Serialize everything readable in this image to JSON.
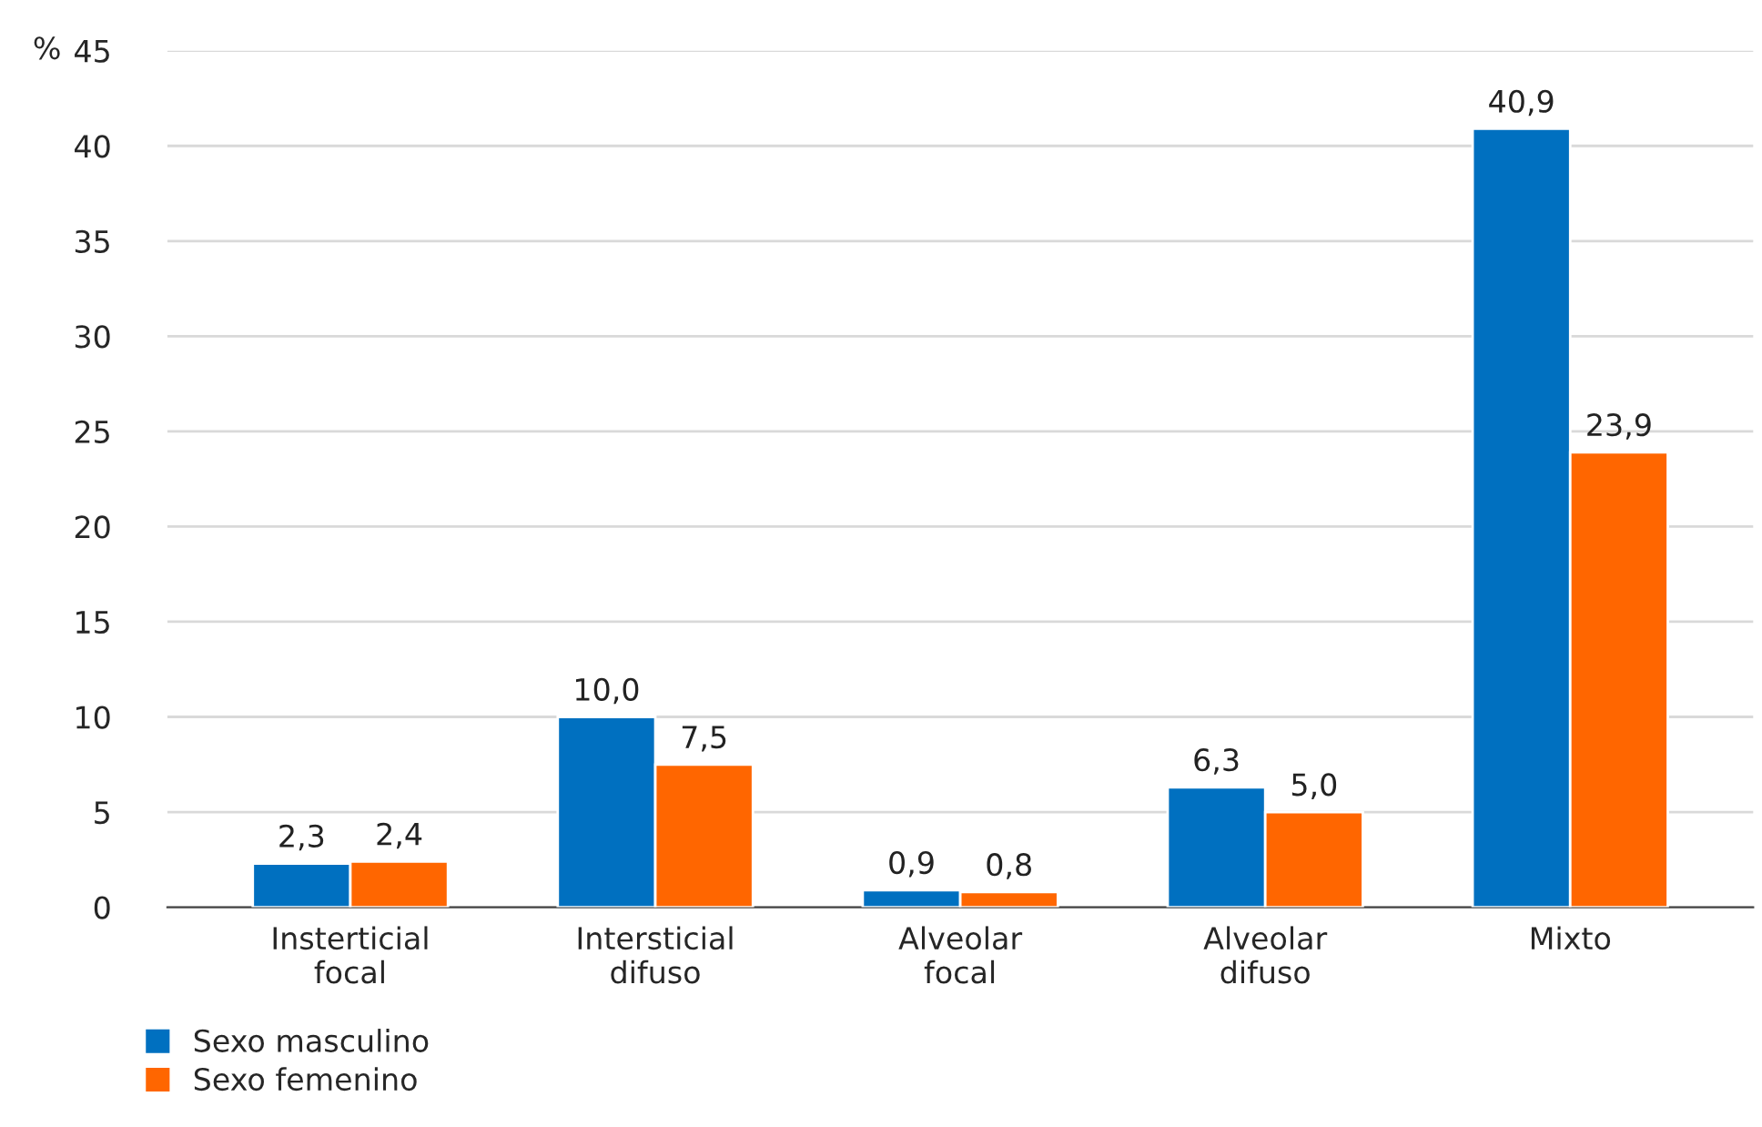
{
  "chart_data": {
    "type": "bar",
    "ylabel": "%",
    "categories": [
      "Insterticial\nfocal",
      "Intersticial\ndifuso",
      "Alveolar\nfocal",
      "Alveolar\ndifuso",
      "Mixto"
    ],
    "series": [
      {
        "name": "Sexo masculino",
        "color": "#0070c0",
        "values": [
          2.3,
          10.0,
          0.9,
          6.3,
          40.9
        ],
        "value_labels": [
          "2,3",
          "10,0",
          "0,9",
          "6,3",
          "40,9"
        ]
      },
      {
        "name": "Sexo femenino",
        "color": "#ff6600",
        "values": [
          2.4,
          7.5,
          0.8,
          5.0,
          23.9
        ],
        "value_labels": [
          "2,4",
          "7,5",
          "0,8",
          "5,0",
          "23,9"
        ]
      }
    ],
    "ylim": [
      0,
      45
    ],
    "yticks": [
      0,
      5,
      10,
      15,
      20,
      25,
      30,
      35,
      40,
      45
    ],
    "grid": "y",
    "legend": "bottom left"
  }
}
